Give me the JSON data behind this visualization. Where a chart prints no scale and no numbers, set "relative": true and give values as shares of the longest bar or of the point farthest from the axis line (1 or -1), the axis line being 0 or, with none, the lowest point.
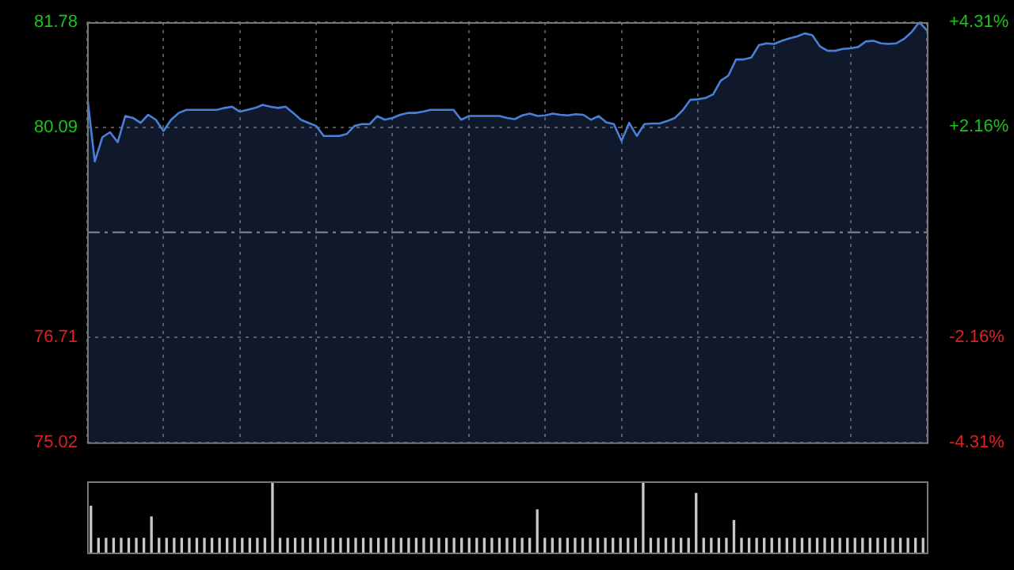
{
  "chart_data": [
    {
      "type": "area",
      "categories": [
        null,
        null,
        null,
        null,
        null,
        null,
        null,
        null,
        null,
        null,
        null,
        null,
        null,
        null,
        null,
        null,
        null,
        null,
        null,
        null,
        null,
        null,
        null,
        null,
        null,
        null,
        null,
        null,
        null,
        null,
        null,
        null,
        null,
        null,
        null,
        null,
        null,
        null,
        null,
        null,
        null,
        null,
        null,
        null,
        null,
        null,
        null,
        null,
        null,
        null,
        null,
        null,
        null,
        null,
        null,
        null,
        null,
        null,
        null,
        null,
        null,
        null,
        null,
        null,
        null,
        null,
        null,
        null,
        null,
        null,
        null,
        null,
        null,
        null,
        null,
        null,
        null,
        null,
        null,
        null,
        null,
        null,
        null,
        null,
        null,
        null,
        null,
        null,
        null,
        null,
        null,
        null,
        null,
        null,
        null,
        null,
        null,
        null,
        null,
        null,
        null,
        null,
        null,
        null,
        null,
        null,
        null,
        null,
        null,
        null,
        null
      ],
      "series": [
        {
          "color": "#4a7fd8",
          "values": [
            80.6,
            79.54,
            79.93,
            80.01,
            79.85,
            80.27,
            80.24,
            80.16,
            80.29,
            80.21,
            80.03,
            80.21,
            80.32,
            80.37,
            80.37,
            80.37,
            80.37,
            80.37,
            80.4,
            80.42,
            80.34,
            80.37,
            80.4,
            80.45,
            80.42,
            80.4,
            80.42,
            80.32,
            80.21,
            80.16,
            80.11,
            79.95,
            79.95,
            79.95,
            79.98,
            80.11,
            80.14,
            80.14,
            80.27,
            80.21,
            80.24,
            80.29,
            80.32,
            80.32,
            80.34,
            80.37,
            80.37,
            80.37,
            80.37,
            80.21,
            80.27,
            80.27,
            80.27,
            80.27,
            80.27,
            80.24,
            80.22,
            80.28,
            80.31,
            80.27,
            80.28,
            80.31,
            80.29,
            80.28,
            80.3,
            80.29,
            80.21,
            80.27,
            80.17,
            80.14,
            79.87,
            80.16,
            79.95,
            80.14,
            80.15,
            80.15,
            80.19,
            80.24,
            80.36,
            80.53,
            80.54,
            80.56,
            80.62,
            80.84,
            80.92,
            81.18,
            81.18,
            81.21,
            81.41,
            81.44,
            81.43,
            81.48,
            81.52,
            81.55,
            81.6,
            81.57,
            81.39,
            81.32,
            81.32,
            81.35,
            81.36,
            81.38,
            81.47,
            81.48,
            81.44,
            81.43,
            81.44,
            81.51,
            81.62,
            81.78,
            81.65
          ]
        }
      ],
      "ylim": [
        75.02,
        81.78
      ],
      "yticks": [
        75.02,
        76.71,
        80.09,
        81.78
      ],
      "y2lim": [
        -4.31,
        4.31
      ],
      "y2ticks": [
        {
          "value": -4.31,
          "label": "-4.31%"
        },
        {
          "value": -2.16,
          "label": "-2.16%"
        },
        {
          "value": 2.16,
          "label": "+2.16%"
        },
        {
          "value": 4.31,
          "label": "+4.31%"
        }
      ],
      "ref_lines": [
        {
          "axis": "y",
          "value": 78.4,
          "color": "#8a8a8a",
          "line_style": "dashdot"
        }
      ],
      "grid": true,
      "legend": false,
      "tick_labels": "y",
      "marker": "none"
    },
    {
      "type": "bar",
      "relative": true,
      "color": "#c8c8c8",
      "categories": [
        null,
        null,
        null,
        null,
        null,
        null,
        null,
        null,
        null,
        null,
        null,
        null,
        null,
        null,
        null,
        null,
        null,
        null,
        null,
        null,
        null,
        null,
        null,
        null,
        null,
        null,
        null,
        null,
        null,
        null,
        null,
        null,
        null,
        null,
        null,
        null,
        null,
        null,
        null,
        null,
        null,
        null,
        null,
        null,
        null,
        null,
        null,
        null,
        null,
        null,
        null,
        null,
        null,
        null,
        null,
        null,
        null,
        null,
        null,
        null,
        null,
        null,
        null,
        null,
        null,
        null,
        null,
        null,
        null,
        null,
        null,
        null,
        null,
        null,
        null,
        null,
        null,
        null,
        null,
        null,
        null,
        null,
        null,
        null,
        null,
        null,
        null,
        null,
        null,
        null,
        null,
        null,
        null,
        null,
        null,
        null,
        null,
        null,
        null,
        null,
        null,
        null,
        null,
        null,
        null,
        null,
        null,
        null,
        null,
        null,
        null
      ],
      "values": [
        0.65,
        0.2,
        0.2,
        0.2,
        0.2,
        0.2,
        0.2,
        0.2,
        0.5,
        0.2,
        0.2,
        0.2,
        0.2,
        0.2,
        0.2,
        0.2,
        0.2,
        0.2,
        0.2,
        0.2,
        0.2,
        0.2,
        0.2,
        0.2,
        1,
        0.2,
        0.2,
        0.2,
        0.2,
        0.2,
        0.2,
        0.2,
        0.2,
        0.2,
        0.2,
        0.2,
        0.2,
        0.2,
        0.2,
        0.2,
        0.2,
        0.2,
        0.2,
        0.2,
        0.2,
        0.2,
        0.2,
        0.2,
        0.2,
        0.2,
        0.2,
        0.2,
        0.2,
        0.2,
        0.2,
        0.2,
        0.2,
        0.2,
        0.2,
        0.6,
        0.2,
        0.2,
        0.2,
        0.2,
        0.2,
        0.2,
        0.2,
        0.2,
        0.2,
        0.2,
        0.2,
        0.2,
        0.2,
        1,
        0.2,
        0.2,
        0.2,
        0.2,
        0.2,
        0.2,
        0.83,
        0.2,
        0.2,
        0.2,
        0.2,
        0.45,
        0.2,
        0.2,
        0.2,
        0.2,
        0.2,
        0.2,
        0.2,
        0.2,
        0.2,
        0.2,
        0.2,
        0.2,
        0.2,
        0.2,
        0.2,
        0.2,
        0.2,
        0.2,
        0.2,
        0.2,
        0.2,
        0.2,
        0.2,
        0.2,
        0.2
      ],
      "legend": false,
      "tick_labels": false
    }
  ]
}
